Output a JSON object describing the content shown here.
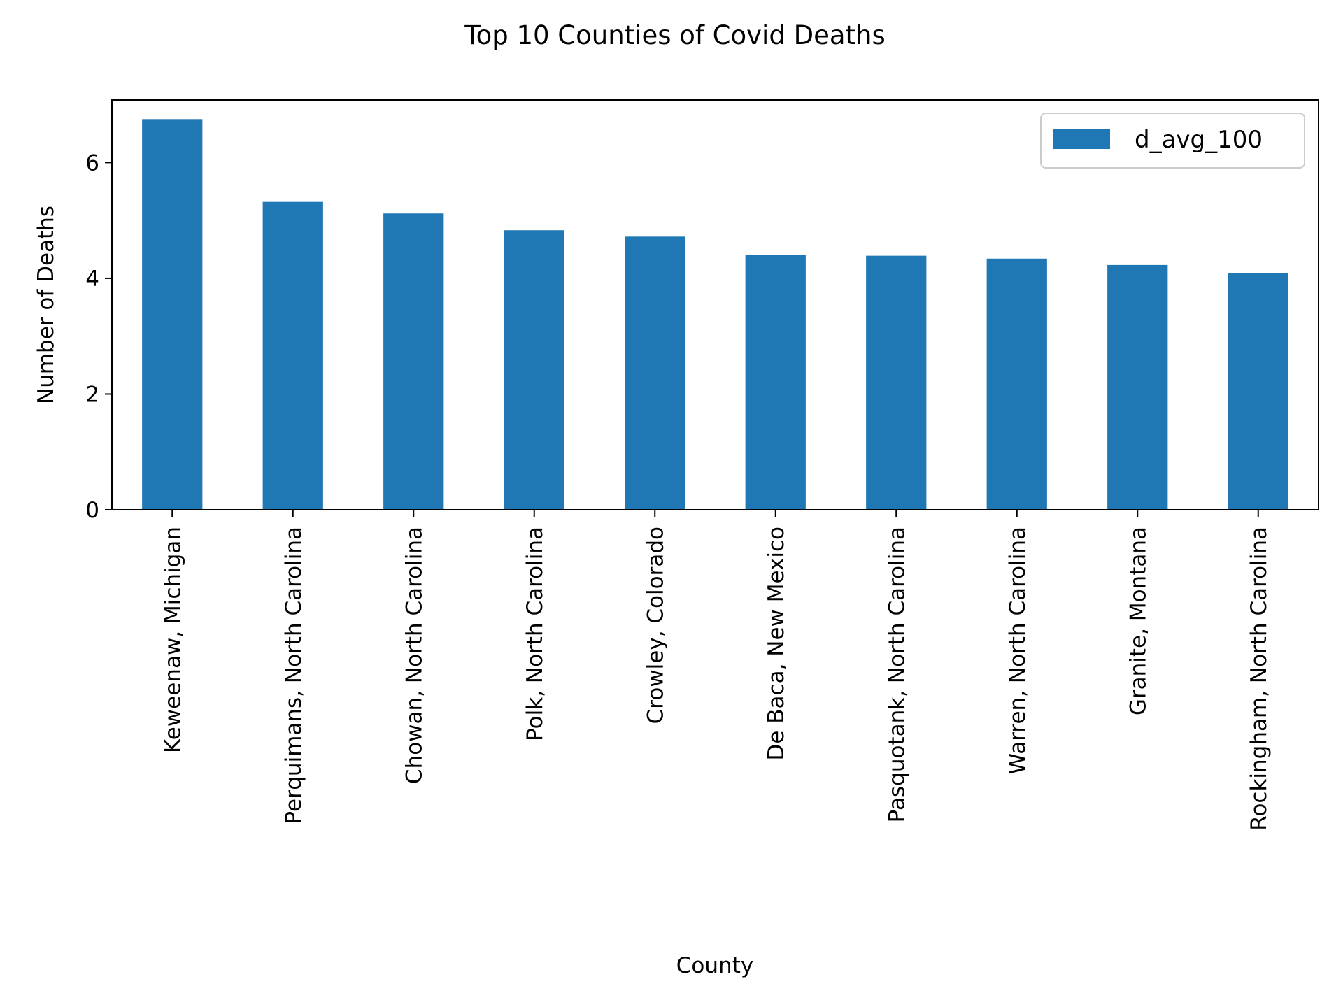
{
  "chart_data": {
    "type": "bar",
    "title": "Top 10 Counties of Covid Deaths",
    "xlabel": "County",
    "ylabel": "Number of Deaths",
    "categories": [
      "Keweenaw, Michigan",
      "Perquimans, North Carolina",
      "Chowan, North Carolina",
      "Polk, North Carolina",
      "Crowley, Colorado",
      "De Baca, New Mexico",
      "Pasquotank, North Carolina",
      "Warren, North Carolina",
      "Granite, Montana",
      "Rockingham, North Carolina"
    ],
    "series": [
      {
        "name": "d_avg_100",
        "color": "#1f77b4",
        "values": [
          6.75,
          5.32,
          5.12,
          4.83,
          4.72,
          4.4,
          4.39,
          4.34,
          4.23,
          4.09
        ]
      }
    ],
    "ylim": [
      0,
      7.08
    ],
    "yticks": [
      0,
      2,
      4,
      6
    ],
    "grid": false,
    "legend_position": "top-right"
  }
}
